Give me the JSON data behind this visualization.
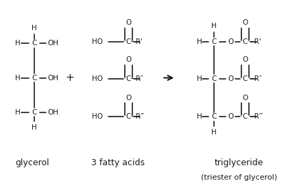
{
  "background_color": "#ffffff",
  "text_color": "#1a1a1a",
  "figsize": [
    4.36,
    2.64
  ],
  "dpi": 100,
  "labels": {
    "glycerol": "glycerol",
    "fatty_acids": "3 fatty acids",
    "triglyceride": "triglyceride",
    "triester": "(triester of glycerol)"
  },
  "font_size": 7.5,
  "label_font_size": 9.0
}
